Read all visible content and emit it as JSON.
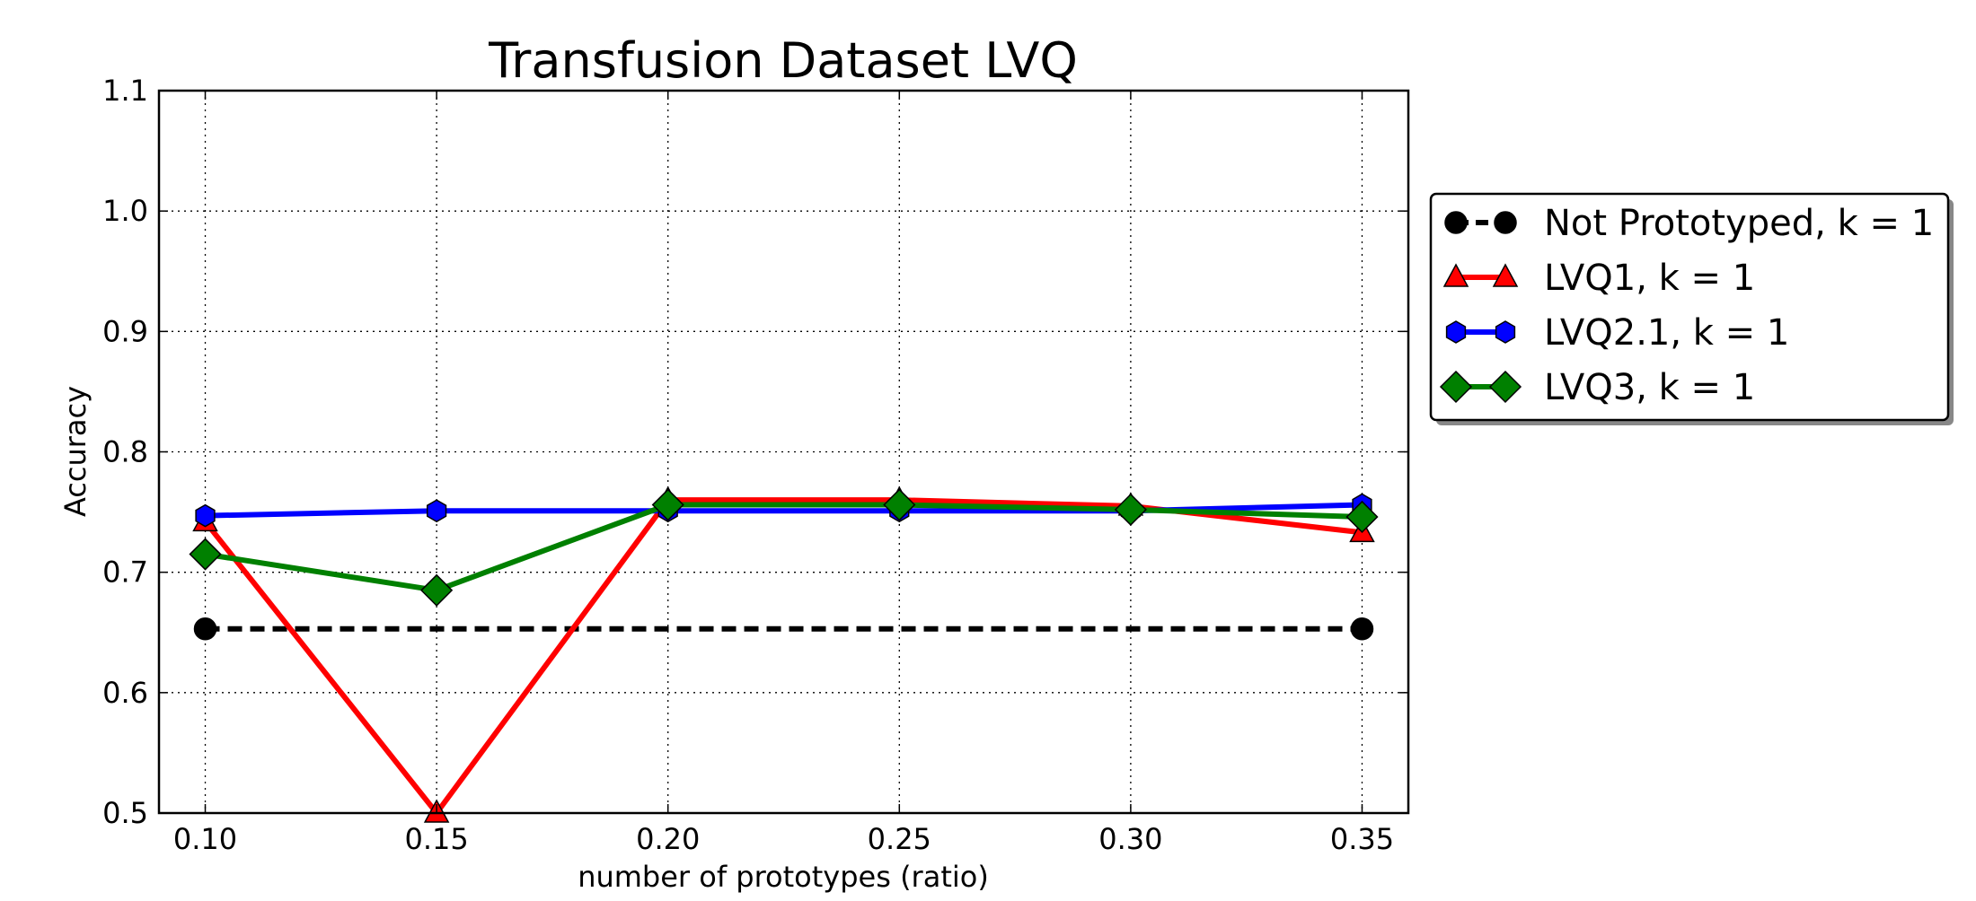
{
  "chart_data": {
    "type": "line",
    "title": "Transfusion Dataset LVQ",
    "xlabel": "number of prototypes (ratio)",
    "ylabel": "Accuracy",
    "x": [
      0.1,
      0.15,
      0.2,
      0.25,
      0.3,
      0.35
    ],
    "xticks": [
      "0.10",
      "0.15",
      "0.20",
      "0.25",
      "0.30",
      "0.35"
    ],
    "xlim": [
      0.09,
      0.36
    ],
    "yticks": [
      "0.5",
      "0.6",
      "0.7",
      "0.8",
      "0.9",
      "1.0",
      "1.1"
    ],
    "ylim": [
      0.5,
      1.1
    ],
    "grid": true,
    "legend_position": "outside right",
    "series": [
      {
        "name": "Not Prototyped, k = 1",
        "x": [
          0.1,
          0.35
        ],
        "values": [
          0.653,
          0.653
        ],
        "color": "#000000",
        "dash": "dashed",
        "marker": "circle"
      },
      {
        "name": "LVQ1, k = 1",
        "x": [
          0.1,
          0.15,
          0.2,
          0.25,
          0.3,
          0.35
        ],
        "values": [
          0.742,
          0.5,
          0.76,
          0.76,
          0.755,
          0.733
        ],
        "color": "#ff0000",
        "dash": "solid",
        "marker": "triangle"
      },
      {
        "name": "LVQ2.1, k = 1",
        "x": [
          0.1,
          0.15,
          0.2,
          0.25,
          0.3,
          0.35
        ],
        "values": [
          0.747,
          0.751,
          0.751,
          0.751,
          0.751,
          0.756
        ],
        "color": "#0000ff",
        "dash": "solid",
        "marker": "hexagon"
      },
      {
        "name": "LVQ3, k = 1",
        "x": [
          0.1,
          0.15,
          0.2,
          0.25,
          0.3,
          0.35
        ],
        "values": [
          0.715,
          0.685,
          0.756,
          0.756,
          0.752,
          0.746
        ],
        "color": "#008000",
        "dash": "solid",
        "marker": "diamond"
      }
    ]
  }
}
